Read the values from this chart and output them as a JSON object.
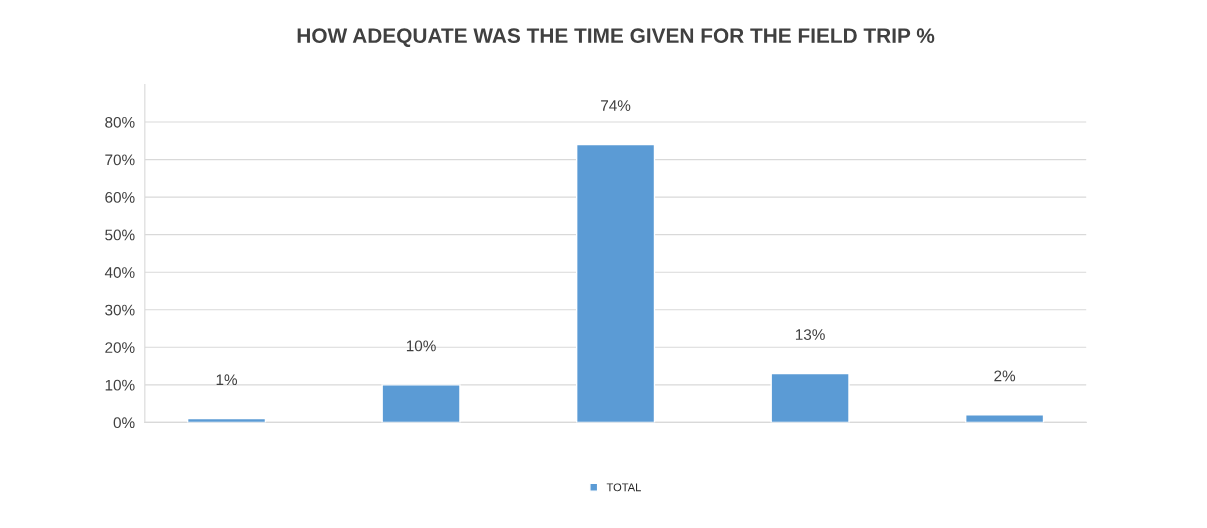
{
  "chart_data": {
    "type": "bar",
    "title": "HOW ADEQUATE WAS THE TIME GIVEN FOR THE FIELD TRIP %",
    "categories": [
      null,
      null,
      null,
      null,
      null
    ],
    "series": [
      {
        "name": "TOTAL",
        "color": "#5b9bd5",
        "values": [
          1,
          10,
          74,
          13,
          2
        ],
        "value_labels": [
          "1%",
          "10%",
          "74%",
          "13%",
          "2%"
        ]
      }
    ],
    "ylim": [
      0,
      90
    ],
    "yticks": [
      {
        "value": 0,
        "label": "0%"
      },
      {
        "value": 10,
        "label": "10%"
      },
      {
        "value": 20,
        "label": "20%"
      },
      {
        "value": 30,
        "label": "30%"
      },
      {
        "value": 40,
        "label": "40%"
      },
      {
        "value": 50,
        "label": "50%"
      },
      {
        "value": 60,
        "label": "60%"
      },
      {
        "value": 70,
        "label": "70%"
      },
      {
        "value": 80,
        "label": "80%"
      }
    ],
    "grid": "y",
    "legend": "bottom"
  }
}
